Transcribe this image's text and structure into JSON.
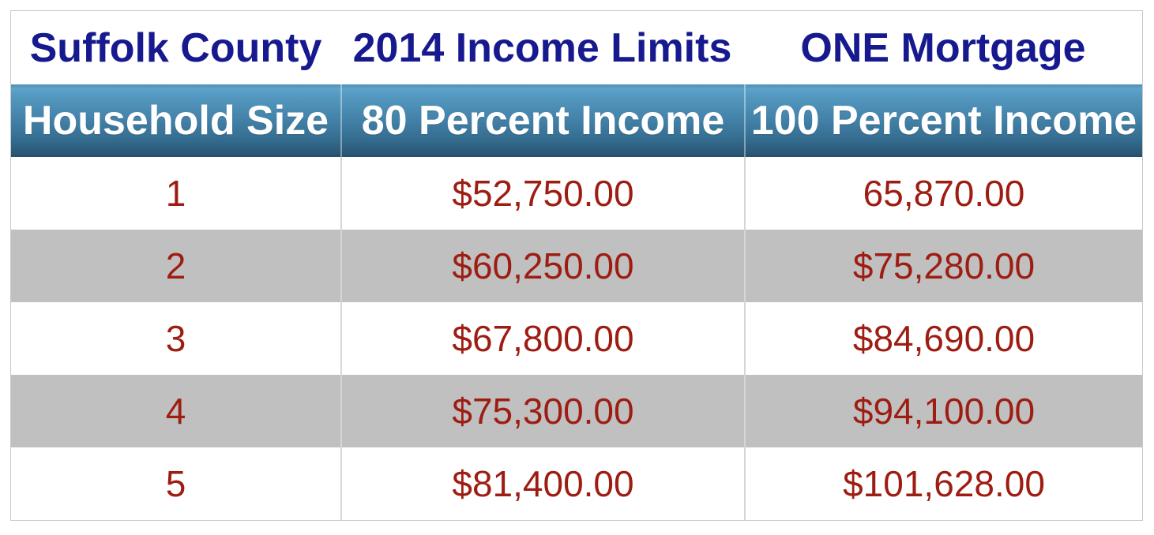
{
  "chart_data": {
    "type": "table",
    "title_row": [
      "Suffolk County",
      "2014 Income Limits",
      "ONE Mortgage"
    ],
    "header_row": [
      "Household Size",
      "80 Percent Income",
      "100 Percent Income"
    ],
    "rows": [
      [
        "1",
        "$52,750.00",
        "65,870.00"
      ],
      [
        "2",
        "$60,250.00",
        "$75,280.00"
      ],
      [
        "3",
        "$67,800.00",
        "$84,690.00"
      ],
      [
        "4",
        "$75,300.00",
        "$94,100.00"
      ],
      [
        "5",
        "$81,400.00",
        "$101,628.00"
      ]
    ],
    "colors": {
      "title_text": "#171a8e",
      "header_text": "#ffffff",
      "header_gradient_top": "#5d9fc7",
      "header_gradient_bottom": "#2a5875",
      "data_text": "#9e1d13",
      "alt_row_bg": "#c0c0c0",
      "grid_border": "#cccccc"
    }
  }
}
